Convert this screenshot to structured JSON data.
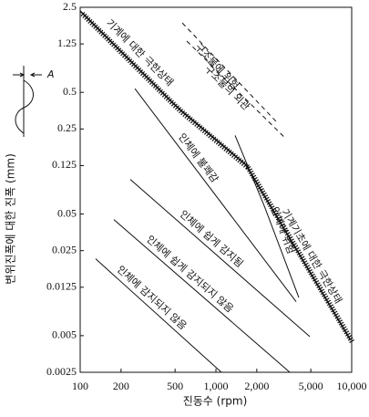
{
  "chart_data": {
    "type": "line",
    "x_label": "진동수 (rpm)",
    "y_label": "변위진폭에 대한 진폭 (mm)",
    "annotation": "A",
    "log_x": true,
    "log_y": true,
    "xlim": [
      100,
      10000
    ],
    "ylim": [
      0.0025,
      2.5
    ],
    "xticks": [
      100,
      200,
      500,
      {
        "value": 1000,
        "label": "1,000"
      },
      {
        "value": 2000,
        "label": "2,000"
      },
      {
        "value": 5000,
        "label": "5,000"
      },
      {
        "value": 10000,
        "label": "10,000"
      }
    ],
    "yticks": [
      2.5,
      1.25,
      0.5,
      0.25,
      0.125,
      0.05,
      0.025,
      0.0125,
      0.005,
      0.0025
    ],
    "series": [
      {
        "name": "기계에 대한 극한상태",
        "color": "#111111",
        "style": "hatched",
        "x": [
          100,
          480,
          560,
          1660
        ],
        "values": [
          2.33,
          0.41,
          0.35,
          0.127
        ]
      },
      {
        "name": "기계기초에 대한 극한상태",
        "color": "#111111",
        "style": "hatched",
        "x": [
          1660,
          9800
        ],
        "values": [
          0.127,
          0.0046
        ]
      },
      {
        "name": "인체에 위험",
        "color": "#111111",
        "style": "solid",
        "x": [
          1384,
          2270,
          4080
        ],
        "values": [
          0.221,
          0.0583,
          0.0103
        ]
      },
      {
        "name": "인체에 불쾌감",
        "color": "#111111",
        "style": "solid",
        "x": [
          253,
          3900
        ],
        "values": [
          0.536,
          0.0095
        ]
      },
      {
        "name": "인체에 쉽게 감지됨",
        "color": "#111111",
        "style": "solid",
        "x": [
          234,
          4910
        ],
        "values": [
          0.0963,
          0.00491
        ]
      },
      {
        "name": "인체에 쉽게 감지되지 않음",
        "color": "#111111",
        "style": "solid",
        "x": [
          177,
          3500
        ],
        "values": [
          0.045,
          0.0025
        ]
      },
      {
        "name": "인체에 감지되지 않음",
        "color": "#111111",
        "style": "solid",
        "x": [
          130,
          1097
        ],
        "values": [
          0.0214,
          0.0025
        ]
      },
      {
        "name": "구조물에 위험",
        "color": "#111111",
        "style": "dashed",
        "x": [
          565,
          2860
        ],
        "values": [
          1.86,
          0.278
        ]
      },
      {
        "name": "구조물의 외관",
        "color": "#111111",
        "style": "dashed",
        "x": [
          610,
          3190
        ],
        "values": [
          1.32,
          0.214
        ]
      }
    ]
  }
}
